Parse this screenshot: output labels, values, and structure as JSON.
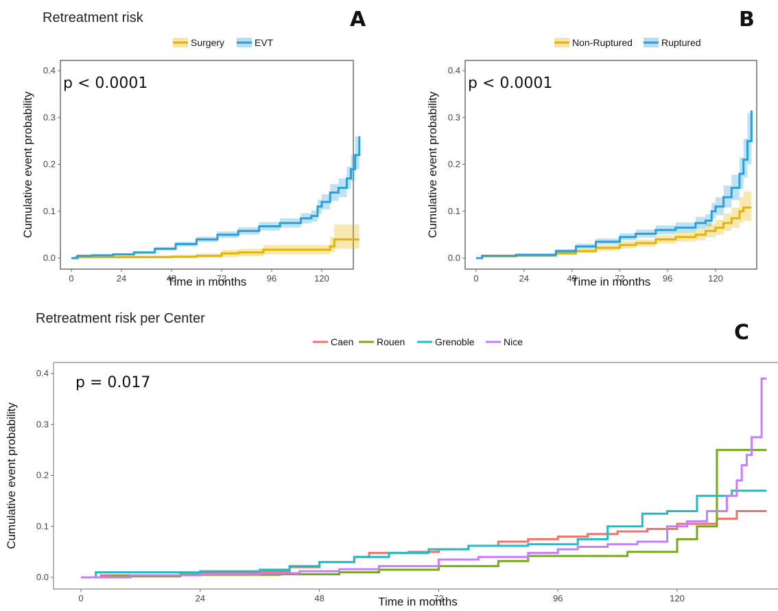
{
  "chart_data": [
    {
      "panel": "A",
      "type": "line",
      "title": "Retreatment risk",
      "annotation": "p < 0.0001",
      "xlabel": "Time in months",
      "ylabel": "Cumulative event probability",
      "xlim": [
        0,
        138
      ],
      "ylim": [
        0,
        0.4
      ],
      "xticks": [
        "0",
        "24",
        "48",
        "72",
        "96",
        "120"
      ],
      "yticks": [
        "0.0",
        "0.1",
        "0.2",
        "0.3",
        "0.4"
      ],
      "grid": false,
      "legend_position": "top",
      "series": [
        {
          "name": "Surgery",
          "color": "#e6b400",
          "x": [
            0,
            2,
            20,
            48,
            60,
            72,
            80,
            92,
            106,
            120,
            124,
            126,
            138
          ],
          "y": [
            0,
            0.002,
            0.002,
            0.003,
            0.005,
            0.01,
            0.012,
            0.018,
            0.018,
            0.018,
            0.025,
            0.04,
            0.04
          ],
          "ci_lower": [
            0,
            0,
            0,
            0,
            0,
            0.002,
            0.004,
            0.008,
            0.008,
            0.008,
            0.012,
            0.02,
            0.02
          ],
          "ci_upper": [
            0,
            0.006,
            0.006,
            0.007,
            0.01,
            0.018,
            0.02,
            0.028,
            0.028,
            0.028,
            0.045,
            0.072,
            0.072
          ]
        },
        {
          "name": "EVT",
          "color": "#2a9fd8",
          "x": [
            0,
            3,
            10,
            20,
            30,
            40,
            50,
            60,
            70,
            80,
            90,
            100,
            110,
            115,
            118,
            120,
            124,
            128,
            132,
            134,
            136,
            138
          ],
          "y": [
            0,
            0.005,
            0.006,
            0.008,
            0.012,
            0.02,
            0.03,
            0.04,
            0.05,
            0.058,
            0.068,
            0.075,
            0.085,
            0.09,
            0.11,
            0.12,
            0.14,
            0.15,
            0.17,
            0.19,
            0.22,
            0.26
          ],
          "ci_lower": [
            0,
            0.003,
            0.004,
            0.006,
            0.009,
            0.016,
            0.025,
            0.034,
            0.043,
            0.05,
            0.059,
            0.065,
            0.074,
            0.078,
            0.095,
            0.104,
            0.122,
            0.13,
            0.148,
            0.165,
            0.19,
            0.22
          ],
          "ci_upper": [
            0,
            0.007,
            0.008,
            0.01,
            0.015,
            0.024,
            0.035,
            0.046,
            0.057,
            0.066,
            0.077,
            0.085,
            0.096,
            0.102,
            0.125,
            0.136,
            0.158,
            0.17,
            0.195,
            0.22,
            0.26,
            0.315
          ]
        }
      ]
    },
    {
      "panel": "B",
      "type": "line",
      "title": "",
      "annotation": "p < 0.0001",
      "xlabel": "Time in months",
      "ylabel": "Cumulative event probability",
      "xlim": [
        0,
        138
      ],
      "ylim": [
        0,
        0.4
      ],
      "xticks": [
        "0",
        "24",
        "48",
        "72",
        "96",
        "120"
      ],
      "yticks": [
        "0.0",
        "0.1",
        "0.2",
        "0.3",
        "0.4"
      ],
      "grid": false,
      "legend_position": "top",
      "series": [
        {
          "name": "Non-Ruptured",
          "color": "#e6b400",
          "x": [
            0,
            3,
            20,
            40,
            50,
            60,
            72,
            80,
            90,
            100,
            110,
            115,
            120,
            124,
            128,
            132,
            134,
            138
          ],
          "y": [
            0,
            0.004,
            0.005,
            0.01,
            0.015,
            0.022,
            0.028,
            0.032,
            0.04,
            0.045,
            0.05,
            0.058,
            0.065,
            0.075,
            0.085,
            0.1,
            0.108,
            0.108
          ],
          "ci_lower": [
            0,
            0.002,
            0.003,
            0.007,
            0.011,
            0.016,
            0.021,
            0.025,
            0.031,
            0.035,
            0.038,
            0.044,
            0.05,
            0.058,
            0.065,
            0.075,
            0.08,
            0.08
          ],
          "ci_upper": [
            0,
            0.006,
            0.008,
            0.014,
            0.02,
            0.028,
            0.036,
            0.04,
            0.049,
            0.056,
            0.063,
            0.074,
            0.082,
            0.095,
            0.108,
            0.13,
            0.142,
            0.142
          ]
        },
        {
          "name": "Ruptured",
          "color": "#2a9fd8",
          "x": [
            0,
            3,
            20,
            40,
            50,
            60,
            72,
            80,
            90,
            100,
            110,
            115,
            118,
            120,
            124,
            128,
            132,
            134,
            136,
            138
          ],
          "y": [
            0,
            0.005,
            0.007,
            0.015,
            0.025,
            0.035,
            0.045,
            0.052,
            0.06,
            0.065,
            0.075,
            0.08,
            0.1,
            0.11,
            0.13,
            0.15,
            0.18,
            0.21,
            0.25,
            0.315
          ],
          "ci_lower": [
            0,
            0.003,
            0.005,
            0.011,
            0.02,
            0.029,
            0.038,
            0.044,
            0.051,
            0.055,
            0.063,
            0.067,
            0.084,
            0.092,
            0.108,
            0.124,
            0.148,
            0.172,
            0.2,
            0.24
          ],
          "ci_upper": [
            0,
            0.007,
            0.01,
            0.019,
            0.031,
            0.042,
            0.053,
            0.061,
            0.07,
            0.076,
            0.088,
            0.094,
            0.118,
            0.13,
            0.155,
            0.178,
            0.215,
            0.255,
            0.31,
            0.395
          ]
        }
      ]
    },
    {
      "panel": "C",
      "type": "line",
      "title": "Retreatment risk per Center",
      "annotation": "p = 0.017",
      "xlabel": "Time in months",
      "ylabel": "Cumulative event probability",
      "xlim": [
        -3,
        144
      ],
      "ylim": [
        -0.01,
        0.42
      ],
      "xticks": [
        "0",
        "24",
        "48",
        "72",
        "96",
        "120"
      ],
      "yticks": [
        "0.0",
        "0.1",
        "0.2",
        "0.3",
        "0.4"
      ],
      "grid": false,
      "legend_position": "top",
      "series": [
        {
          "name": "Caen",
          "color": "#f0706a",
          "x": [
            0,
            4,
            20,
            36,
            42,
            48,
            55,
            58,
            66,
            72,
            78,
            84,
            90,
            96,
            102,
            108,
            114,
            120,
            128,
            132,
            138
          ],
          "y": [
            0,
            0.004,
            0.008,
            0.012,
            0.02,
            0.03,
            0.04,
            0.048,
            0.05,
            0.055,
            0.062,
            0.07,
            0.075,
            0.08,
            0.085,
            0.09,
            0.095,
            0.105,
            0.115,
            0.13,
            0.13
          ]
        },
        {
          "name": "Rouen",
          "color": "#76a81c",
          "x": [
            0,
            6,
            20,
            40,
            52,
            60,
            72,
            84,
            90,
            110,
            120,
            124,
            128,
            131,
            138
          ],
          "y": [
            0,
            0.002,
            0.005,
            0.006,
            0.01,
            0.015,
            0.022,
            0.032,
            0.042,
            0.05,
            0.075,
            0.1,
            0.25,
            0.25,
            0.25
          ]
        },
        {
          "name": "Grenoble",
          "color": "#1fbcc4",
          "x": [
            0,
            3,
            12,
            24,
            36,
            42,
            48,
            55,
            62,
            70,
            78,
            90,
            100,
            106,
            112,
            113,
            118,
            122,
            124,
            128,
            131,
            138
          ],
          "y": [
            0,
            0.01,
            0.01,
            0.012,
            0.015,
            0.022,
            0.03,
            0.04,
            0.048,
            0.055,
            0.062,
            0.065,
            0.075,
            0.1,
            0.1,
            0.125,
            0.13,
            0.13,
            0.16,
            0.16,
            0.17,
            0.17
          ]
        },
        {
          "name": "Nice",
          "color": "#c77cff",
          "x": [
            0,
            10,
            24,
            36,
            44,
            52,
            60,
            72,
            80,
            90,
            96,
            100,
            106,
            112,
            118,
            122,
            126,
            130,
            132,
            133,
            134,
            135,
            137,
            138
          ],
          "y": [
            0,
            0.004,
            0.006,
            0.008,
            0.012,
            0.016,
            0.022,
            0.035,
            0.04,
            0.048,
            0.055,
            0.06,
            0.065,
            0.07,
            0.1,
            0.11,
            0.13,
            0.16,
            0.19,
            0.22,
            0.24,
            0.275,
            0.39,
            0.39
          ]
        }
      ]
    }
  ],
  "panel_letters": [
    "A",
    "B",
    "C"
  ]
}
